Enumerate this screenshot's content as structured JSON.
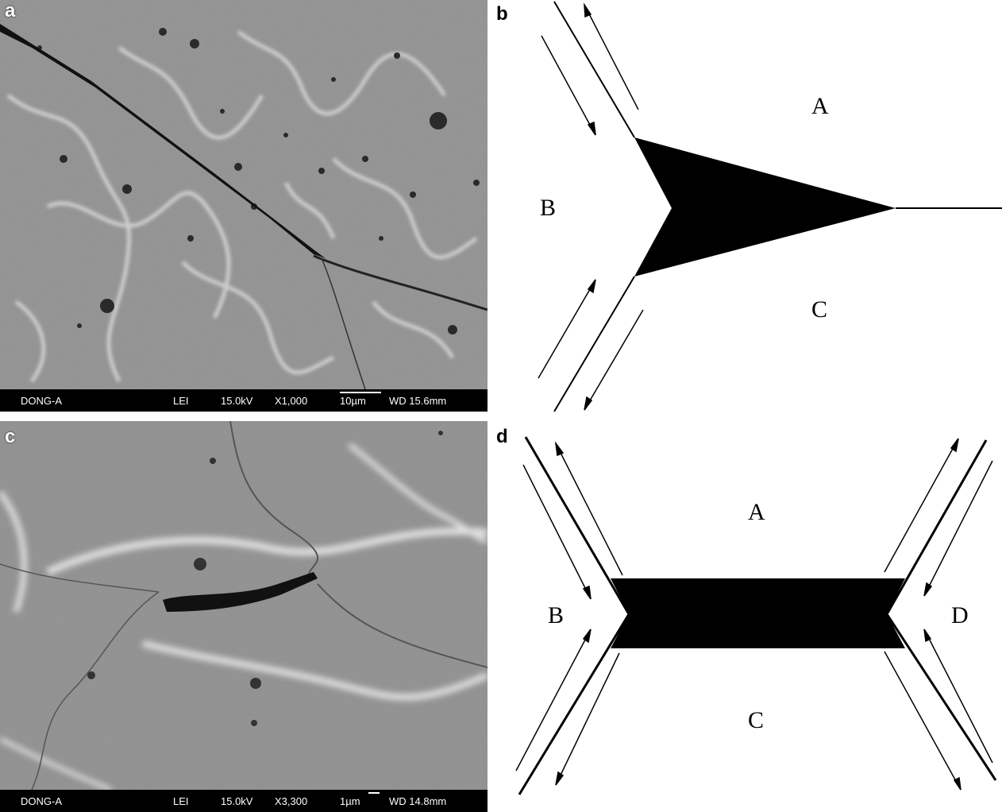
{
  "panels": {
    "a": {
      "label": "a",
      "infobar": {
        "operator": "DONG-A",
        "detector": "LEI",
        "voltage": "15.0kV",
        "magnification": "X1,000",
        "scale": "10µm",
        "wd": "WD 15.6mm"
      }
    },
    "b": {
      "label": "b",
      "grain_labels": {
        "a": "A",
        "b": "B",
        "c": "C"
      }
    },
    "c": {
      "label": "c",
      "infobar": {
        "operator": "DONG-A",
        "detector": "LEI",
        "voltage": "15.0kV",
        "magnification": "X3,300",
        "scale": "1µm",
        "wd": "WD 14.8mm"
      }
    },
    "d": {
      "label": "d",
      "grain_labels": {
        "a": "A",
        "b": "B",
        "c": "C",
        "d": "D"
      }
    }
  },
  "colors": {
    "sem_gray": "#8a8a8a",
    "infobar": "#000000",
    "diagram_fill": "#000000"
  }
}
